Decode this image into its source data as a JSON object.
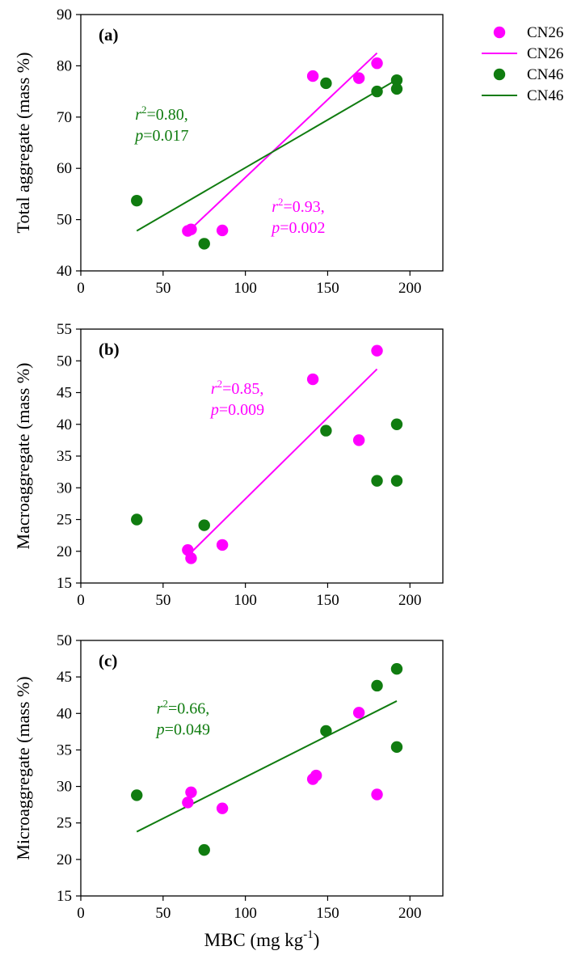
{
  "colors": {
    "CN26": "#ff00ff",
    "CN46": "#107c10",
    "axis": "#000000"
  },
  "legend": {
    "placement": "top-right",
    "items": [
      {
        "label": "CN26",
        "kind": "marker",
        "series": "CN26"
      },
      {
        "label": "CN26",
        "kind": "line",
        "series": "CN26"
      },
      {
        "label": "CN46",
        "kind": "marker",
        "series": "CN46"
      },
      {
        "label": "CN46",
        "kind": "line",
        "series": "CN46"
      }
    ]
  },
  "shared_xlabel": {
    "main": "MBC (mg kg",
    "sup": "-1",
    "tail": ")"
  },
  "chart_data": [
    {
      "type": "scatter",
      "panel_label": "(a)",
      "ylabel": "Total aggregate (mass %)",
      "xlim": [
        0,
        220
      ],
      "ylim": [
        40,
        90
      ],
      "xticks": [
        0,
        50,
        100,
        150,
        200
      ],
      "yticks": [
        40,
        50,
        60,
        70,
        80,
        90
      ],
      "grid": false,
      "series": [
        {
          "name": "CN26",
          "points": [
            [
              65,
              47.8
            ],
            [
              67,
              48.1
            ],
            [
              86,
              47.9
            ],
            [
              141,
              78.0
            ],
            [
              169,
              77.6
            ],
            [
              180,
              80.5
            ]
          ],
          "fit": [
            [
              65,
              47.6
            ],
            [
              180,
              82.5
            ]
          ]
        },
        {
          "name": "CN46",
          "points": [
            [
              34,
              53.7
            ],
            [
              75,
              45.3
            ],
            [
              149,
              76.6
            ],
            [
              180,
              75.0
            ],
            [
              192,
              77.2
            ],
            [
              192,
              75.5
            ]
          ],
          "fit": [
            [
              34,
              47.8
            ],
            [
              192,
              77.3
            ]
          ]
        }
      ],
      "annotations": [
        {
          "series": "CN46",
          "r_label": "r",
          "r_sup": "2",
          "r_value": "=0.80,",
          "p_label": "p",
          "p_value": "=0.017",
          "x": 33,
          "y": 69.5
        },
        {
          "series": "CN26",
          "r_label": "r",
          "r_sup": "2",
          "r_value": "=0.93,",
          "p_label": "p",
          "p_value": "=0.002",
          "x": 116,
          "y": 51.5
        }
      ]
    },
    {
      "type": "scatter",
      "panel_label": "(b)",
      "ylabel": "Macroaggregate (mass %)",
      "xlim": [
        0,
        220
      ],
      "ylim": [
        15,
        55
      ],
      "xticks": [
        0,
        50,
        100,
        150,
        200
      ],
      "yticks": [
        15,
        20,
        25,
        30,
        35,
        40,
        45,
        50,
        55
      ],
      "grid": false,
      "series": [
        {
          "name": "CN26",
          "points": [
            [
              65,
              20.2
            ],
            [
              67,
              18.9
            ],
            [
              86,
              21.0
            ],
            [
              141,
              47.1
            ],
            [
              169,
              37.5
            ],
            [
              180,
              51.6
            ]
          ],
          "fit": [
            [
              65,
              19.3
            ],
            [
              180,
              48.7
            ]
          ]
        },
        {
          "name": "CN46",
          "points": [
            [
              34,
              25.0
            ],
            [
              75,
              24.1
            ],
            [
              149,
              39.0
            ],
            [
              180,
              31.1
            ],
            [
              192,
              40.0
            ],
            [
              192,
              31.1
            ]
          ],
          "fit": []
        }
      ],
      "annotations": [
        {
          "series": "CN26",
          "r_label": "r",
          "r_sup": "2",
          "r_value": "=0.85,",
          "p_label": "p",
          "p_value": "=0.009",
          "x": 79,
          "y": 44.8
        }
      ]
    },
    {
      "type": "scatter",
      "panel_label": "(c)",
      "ylabel": "Microaggregate (mass %)",
      "xlim": [
        0,
        220
      ],
      "ylim": [
        15,
        50
      ],
      "xticks": [
        0,
        50,
        100,
        150,
        200
      ],
      "yticks": [
        15,
        20,
        25,
        30,
        35,
        40,
        45,
        50
      ],
      "grid": false,
      "series": [
        {
          "name": "CN26",
          "points": [
            [
              65,
              27.8
            ],
            [
              67,
              29.2
            ],
            [
              86,
              27.0
            ],
            [
              141,
              31.0
            ],
            [
              143,
              31.5
            ],
            [
              169,
              40.1
            ],
            [
              180,
              28.9
            ]
          ],
          "fit": []
        },
        {
          "name": "CN46",
          "points": [
            [
              34,
              28.8
            ],
            [
              75,
              21.3
            ],
            [
              149,
              37.6
            ],
            [
              180,
              43.8
            ],
            [
              192,
              46.1
            ],
            [
              192,
              35.4
            ]
          ],
          "fit": [
            [
              34,
              23.8
            ],
            [
              192,
              41.7
            ]
          ]
        }
      ],
      "annotations": [
        {
          "series": "CN46",
          "r_label": "r",
          "r_sup": "2",
          "r_value": "=0.66,",
          "p_label": "p",
          "p_value": "=0.049",
          "x": 46,
          "y": 40.0
        }
      ]
    }
  ]
}
